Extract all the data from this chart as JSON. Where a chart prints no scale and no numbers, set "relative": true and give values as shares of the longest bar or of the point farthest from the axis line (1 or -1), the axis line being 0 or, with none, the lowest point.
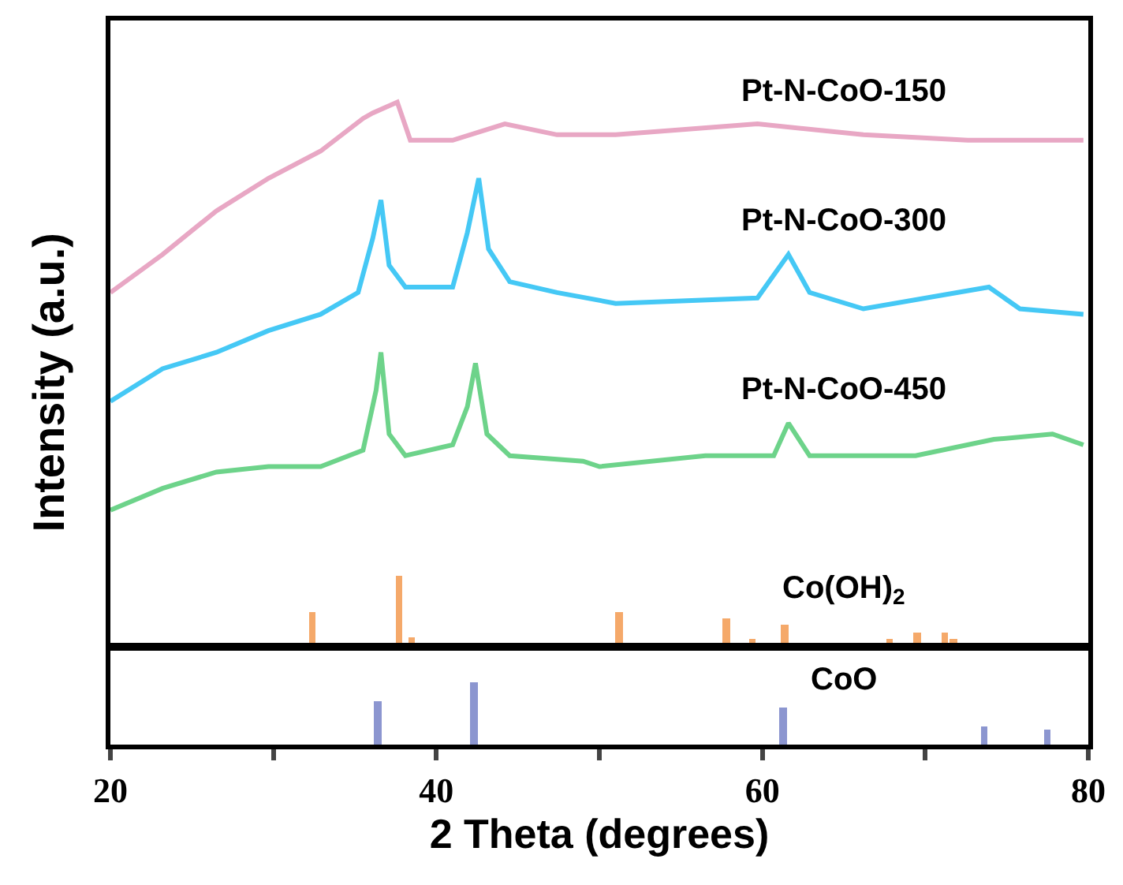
{
  "chart_data": [
    {
      "type": "line",
      "relative": true,
      "ylabel": "Intensity (a.u.)",
      "xlim": [
        20,
        80
      ],
      "tick_labels": false,
      "legend": false,
      "grid": false,
      "line_style": "solid",
      "marker": "none",
      "series": [
        {
          "name": "Pt-N-CoO-150",
          "color": "#e8a7c4",
          "x": [
            20,
            23.2,
            26.5,
            29.7,
            32.9,
            35.5,
            36.1,
            37.6,
            38.4,
            41,
            44.2,
            47.4,
            51,
            59.7,
            66.2,
            72.6,
            79.7
          ],
          "values": [
            0.65,
            0.72,
            0.8,
            0.86,
            0.91,
            0.97,
            0.98,
            1.0,
            0.93,
            0.93,
            0.96,
            0.94,
            0.94,
            0.96,
            0.94,
            0.93,
            0.93
          ]
        },
        {
          "name": "Pt-N-CoO-300",
          "color": "#45c8f5",
          "x": [
            20,
            23.2,
            26.5,
            29.7,
            32.9,
            35.2,
            36.1,
            36.6,
            37.1,
            38.1,
            41,
            41.9,
            42.6,
            43.2,
            44.5,
            47.4,
            51,
            59.7,
            61.6,
            62.9,
            66.2,
            73.9,
            75.8,
            79.7
          ],
          "values": [
            0.45,
            0.51,
            0.54,
            0.58,
            0.61,
            0.65,
            0.75,
            0.82,
            0.7,
            0.66,
            0.66,
            0.76,
            0.86,
            0.73,
            0.67,
            0.65,
            0.63,
            0.64,
            0.72,
            0.65,
            0.62,
            0.66,
            0.62,
            0.61
          ]
        },
        {
          "name": "Pt-N-CoO-450",
          "color": "#6dd38a",
          "x": [
            20,
            23.2,
            26.5,
            29.7,
            32.9,
            35.5,
            36.3,
            36.6,
            37.1,
            38.1,
            41,
            41.9,
            42.4,
            43.1,
            44.5,
            49,
            50,
            56.5,
            60.7,
            61.6,
            62.9,
            65.5,
            69.4,
            74.2,
            77.8,
            79.7
          ],
          "values": [
            0.25,
            0.29,
            0.32,
            0.33,
            0.33,
            0.36,
            0.47,
            0.54,
            0.39,
            0.35,
            0.37,
            0.44,
            0.52,
            0.39,
            0.35,
            0.34,
            0.33,
            0.35,
            0.35,
            0.41,
            0.35,
            0.35,
            0.35,
            0.38,
            0.39,
            0.37
          ]
        },
        {
          "type": "bar",
          "name": "Co(OH)$_{2}$",
          "color": "#f5a96a",
          "x": [
            32.4,
            37.7,
            38.5,
            51.2,
            57.8,
            59.4,
            61.4,
            67.8,
            69.5,
            71.2,
            71.7
          ],
          "values": [
            0.063,
            0.13,
            0.017,
            0.063,
            0.052,
            0.014,
            0.04,
            0.014,
            0.026,
            0.026,
            0.014
          ]
        }
      ]
    },
    {
      "type": "bar",
      "relative": true,
      "xlabel": "2 Theta (degrees)",
      "xlim": [
        20,
        80
      ],
      "tick_labels": "x",
      "legend": false,
      "grid": false,
      "xticks": [
        20,
        {
          "value": 30,
          "label": null
        },
        40,
        {
          "value": 50,
          "label": null
        },
        60,
        {
          "value": 70,
          "label": null
        },
        80
      ],
      "series": [
        {
          "name": "CoO",
          "color": "#8c96d0",
          "x": [
            36.4,
            42.3,
            61.3,
            73.6,
            77.5
          ],
          "values": [
            0.7,
            1.0,
            0.6,
            0.3,
            0.25
          ]
        }
      ]
    }
  ]
}
